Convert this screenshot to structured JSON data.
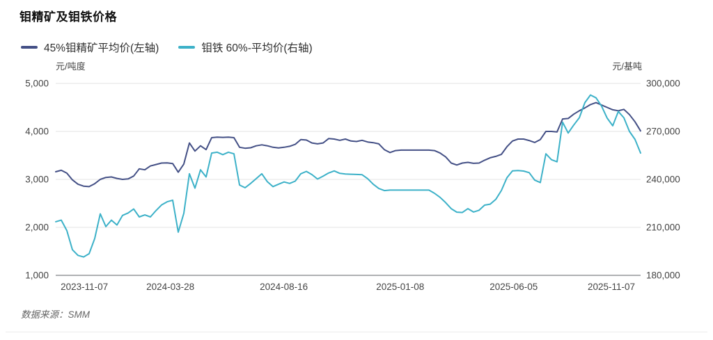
{
  "header": {
    "title": "钼精矿及钼铁价格"
  },
  "legend": [
    {
      "label": "45%钼精矿平均价(左轴)",
      "color": "#434f85"
    },
    {
      "label": "钼铁 60%-平均价(右轴)",
      "color": "#3cb1c8"
    }
  ],
  "footer": {
    "source_label": "数据来源：",
    "source_value": "SMM"
  },
  "chart_data": {
    "type": "line",
    "title": "钼精矿及钼铁价格",
    "grid": true,
    "grid_color": "#e3e3e3",
    "axis_color": "#5c6167",
    "legend_position": "top-left",
    "left_axis": {
      "unit": "元/吨度",
      "range": [
        1000,
        5000
      ],
      "tick_labels": [
        "5,000",
        "4,000",
        "3,000",
        "2,000",
        "1,000"
      ]
    },
    "right_axis": {
      "unit": "元/基吨",
      "range": [
        180000,
        300000
      ],
      "tick_labels": [
        "300,000",
        "270,000",
        "240,000",
        "210,000",
        "180,000"
      ]
    },
    "x_axis": {
      "ticks": [
        {
          "label": "2023-11-07",
          "pos": 0.049
        },
        {
          "label": "2024-03-28",
          "pos": 0.196
        },
        {
          "label": "2024-08-16",
          "pos": 0.39
        },
        {
          "label": "2025-01-08",
          "pos": 0.589
        },
        {
          "label": "2025-06-05",
          "pos": 0.783
        },
        {
          "label": "2025-11-07",
          "pos": 0.95
        }
      ]
    },
    "series": [
      {
        "name": "45%钼精矿平均价(左轴)",
        "axis": "left",
        "color": "#434f85",
        "values": [
          3160,
          3190,
          3130,
          2990,
          2900,
          2860,
          2850,
          2910,
          3000,
          3040,
          3050,
          3020,
          3000,
          3010,
          3070,
          3220,
          3200,
          3280,
          3310,
          3340,
          3345,
          3330,
          3150,
          3320,
          3760,
          3590,
          3700,
          3620,
          3870,
          3880,
          3875,
          3880,
          3870,
          3670,
          3650,
          3660,
          3700,
          3720,
          3700,
          3670,
          3655,
          3670,
          3690,
          3730,
          3830,
          3820,
          3760,
          3740,
          3760,
          3850,
          3840,
          3815,
          3840,
          3800,
          3790,
          3815,
          3780,
          3765,
          3740,
          3620,
          3560,
          3600,
          3610,
          3610,
          3610,
          3610,
          3610,
          3610,
          3600,
          3550,
          3470,
          3340,
          3300,
          3340,
          3355,
          3335,
          3340,
          3400,
          3450,
          3480,
          3520,
          3680,
          3800,
          3840,
          3840,
          3810,
          3770,
          3830,
          4000,
          4000,
          3990,
          4260,
          4270,
          4360,
          4430,
          4490,
          4560,
          4600,
          4550,
          4500,
          4450,
          4430,
          4460,
          4350,
          4200,
          4010
        ]
      },
      {
        "name": "钼铁 60%-平均价(右轴)",
        "axis": "right",
        "color": "#3cb1c8",
        "values": [
          213500,
          214500,
          208000,
          196000,
          192500,
          191500,
          193500,
          203000,
          218500,
          210500,
          214500,
          211500,
          217500,
          219000,
          221500,
          216500,
          217800,
          216500,
          220500,
          224000,
          226000,
          227000,
          207000,
          218800,
          243500,
          234500,
          246000,
          241500,
          256500,
          257000,
          255500,
          257000,
          256000,
          236500,
          234800,
          237500,
          240500,
          243500,
          238500,
          235500,
          237000,
          238400,
          237500,
          238900,
          243500,
          245000,
          243000,
          240200,
          242000,
          244000,
          245300,
          243800,
          243400,
          243200,
          243100,
          242900,
          240500,
          237000,
          234300,
          233000,
          233300,
          233300,
          233300,
          233300,
          233300,
          233300,
          233300,
          233300,
          231300,
          228800,
          225500,
          221700,
          219500,
          219300,
          221700,
          219600,
          220700,
          223900,
          224500,
          227500,
          233000,
          241000,
          245300,
          245500,
          245200,
          244200,
          239500,
          238000,
          256000,
          252300,
          251000,
          275800,
          269000,
          274000,
          278500,
          288000,
          292800,
          291000,
          285800,
          278300,
          273500,
          282500,
          278500,
          270000,
          265000,
          256500
        ]
      }
    ]
  }
}
